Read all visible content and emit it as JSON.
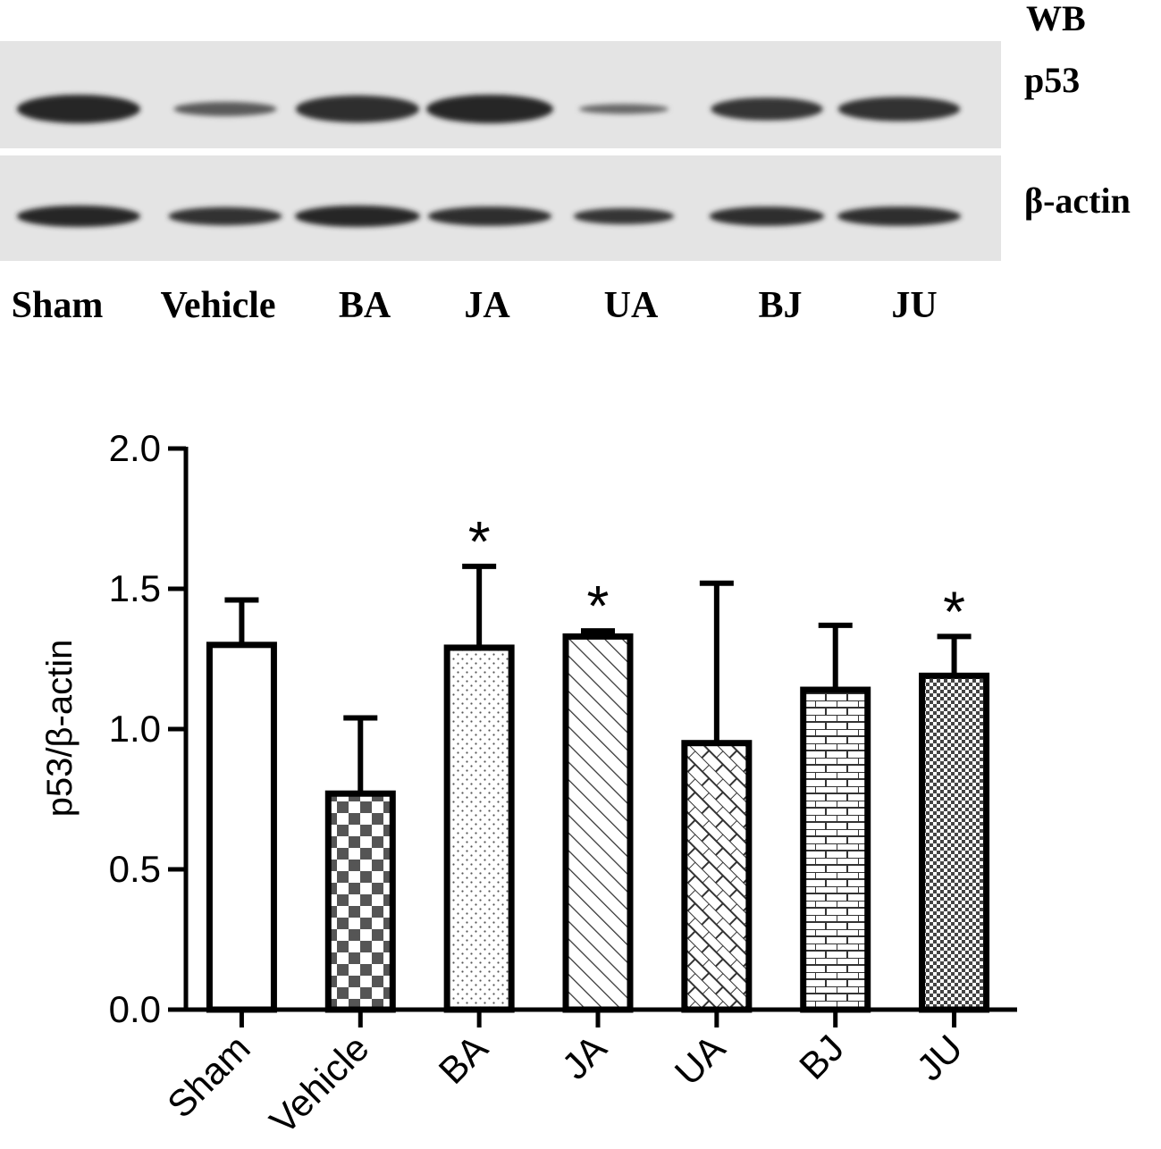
{
  "blot": {
    "header": "WB",
    "rows": [
      {
        "label": "p53",
        "intensity": [
          1.0,
          0.45,
          0.95,
          1.0,
          0.3,
          0.85,
          0.9
        ],
        "thickness": [
          1.0,
          0.5,
          0.95,
          1.0,
          0.35,
          0.8,
          0.85
        ]
      },
      {
        "label": "β-actin",
        "intensity": [
          1.0,
          0.9,
          1.0,
          0.95,
          0.85,
          0.95,
          0.95
        ],
        "thickness": [
          1.0,
          0.85,
          1.0,
          0.9,
          0.75,
          0.9,
          0.9
        ]
      }
    ],
    "lanes": [
      "Sham",
      "Vehicle",
      "BA",
      "JA",
      "UA",
      "BJ",
      "JU"
    ]
  },
  "chart_data": {
    "type": "bar",
    "categories": [
      "Sham",
      "Vehicle",
      "BA",
      "JA",
      "UA",
      "BJ",
      "JU"
    ],
    "values": [
      1.3,
      0.77,
      1.29,
      1.33,
      0.95,
      1.14,
      1.19
    ],
    "errors": [
      0.16,
      0.27,
      0.29,
      0.02,
      0.57,
      0.23,
      0.14
    ],
    "significance": [
      "",
      "",
      "*",
      "*",
      "",
      "",
      "*"
    ],
    "patterns": [
      "none",
      "checker",
      "dots",
      "diagonal",
      "brick-diagonal",
      "brick",
      "fine-checker"
    ],
    "ylabel": "p53/β-actin",
    "ylim": [
      0,
      2.0
    ],
    "yticks": [
      "0.0",
      "0.5",
      "1.0",
      "1.5",
      "2.0"
    ],
    "grid": false,
    "legend": "none"
  }
}
